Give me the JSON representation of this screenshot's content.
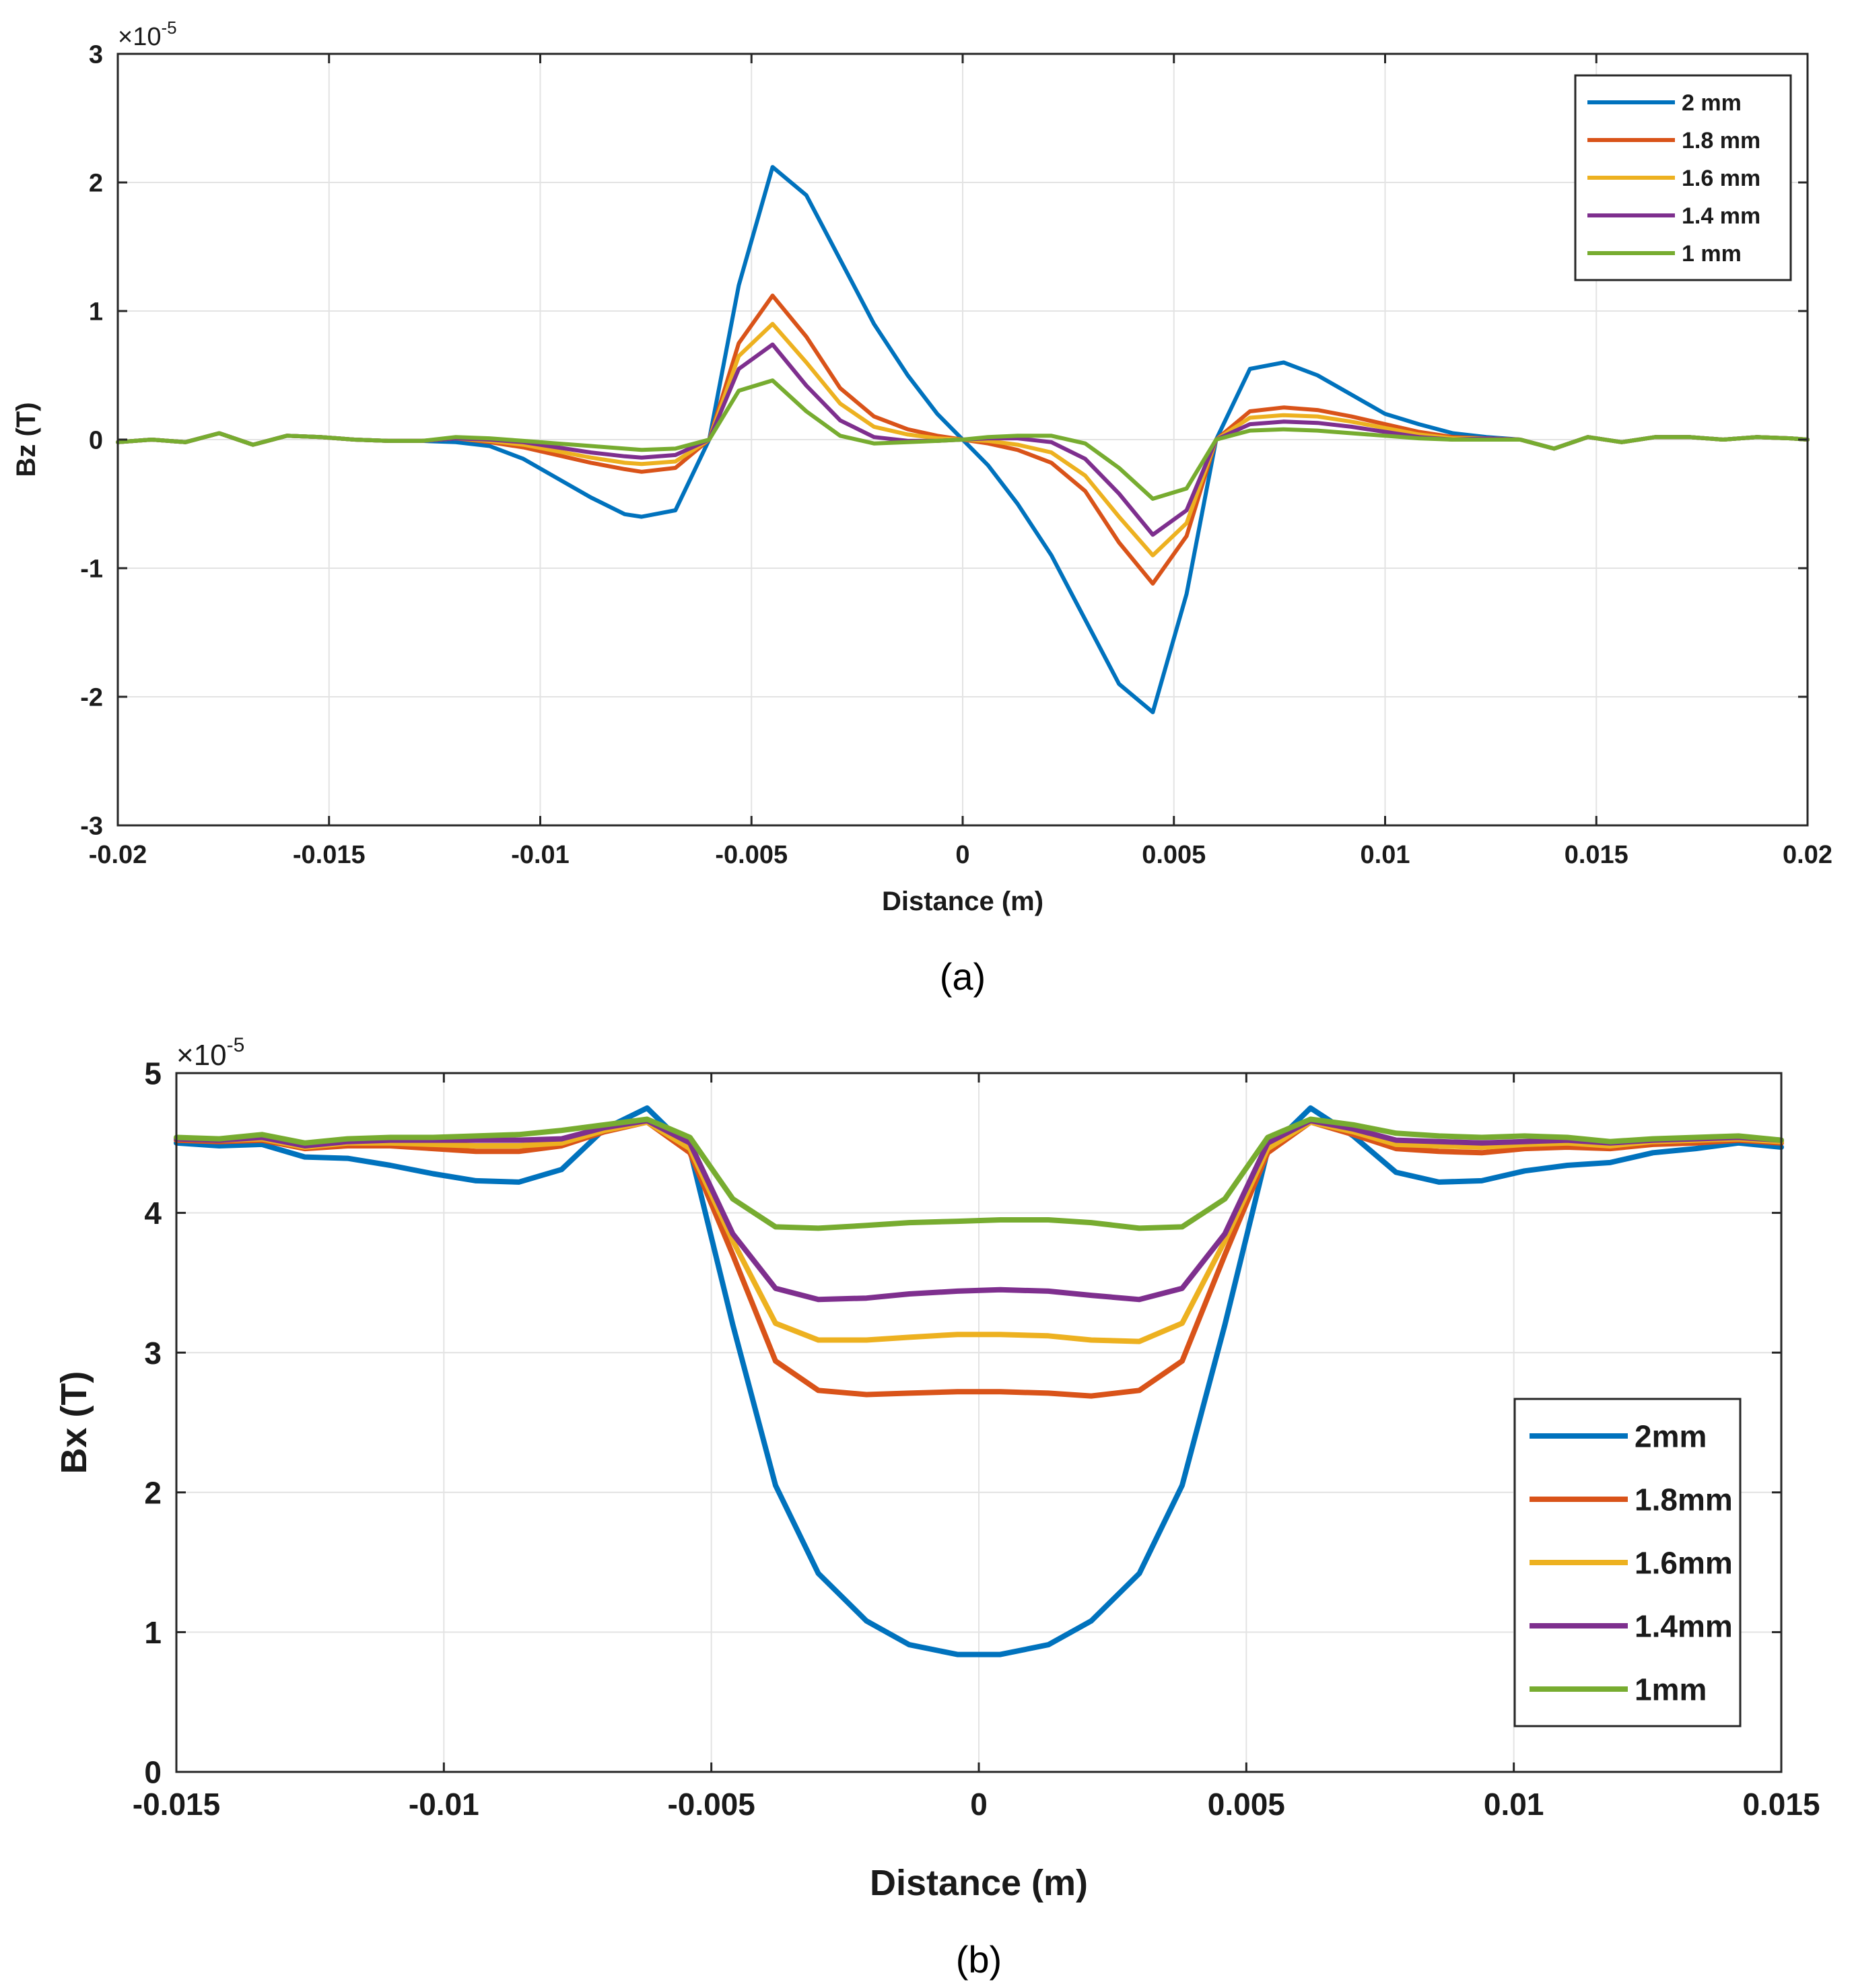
{
  "chart_data": [
    {
      "type": "line",
      "panel_label": "(a)",
      "exponent_label": "×10",
      "exponent_power": "-5",
      "title": "",
      "xlabel": "Distance (m)",
      "ylabel": "Bz (T)",
      "xlim": [
        -0.02,
        0.02
      ],
      "ylim": [
        -3,
        3
      ],
      "xticks": [
        -0.02,
        -0.015,
        -0.01,
        -0.005,
        0,
        0.005,
        0.01,
        0.015,
        0.02
      ],
      "xtick_labels": [
        "-0.02",
        "-0.015",
        "-0.01",
        "-0.005",
        "0",
        "0.005",
        "0.01",
        "0.015",
        "0.02"
      ],
      "yticks": [
        -3,
        -2,
        -1,
        0,
        1,
        2,
        3
      ],
      "ytick_labels": [
        "-3",
        "-2",
        "-1",
        "0",
        "1",
        "2",
        "3"
      ],
      "grid": true,
      "legend_position": "top-right",
      "x": [
        -0.02,
        -0.0192,
        -0.0184,
        -0.0176,
        -0.0168,
        -0.016,
        -0.0152,
        -0.0144,
        -0.0136,
        -0.0128,
        -0.012,
        -0.0112,
        -0.0104,
        -0.0096,
        -0.0088,
        -0.008,
        -0.0076,
        -0.0068,
        -0.006,
        -0.0053,
        -0.0045,
        -0.0037,
        -0.0029,
        -0.0021,
        -0.0013,
        -0.0006,
        0,
        0.0006,
        0.0013,
        0.0021,
        0.0029,
        0.0037,
        0.0045,
        0.0053,
        0.006,
        0.0068,
        0.0076,
        0.0084,
        0.0092,
        0.01,
        0.0108,
        0.0116,
        0.0124,
        0.0132,
        0.014,
        0.0148,
        0.0156,
        0.0164,
        0.0172,
        0.018,
        0.0188,
        0.0196,
        0.02
      ],
      "series": [
        {
          "name": "2 mm",
          "color": "#0072BD",
          "values": [
            -0.02,
            0,
            -0.02,
            0.05,
            -0.04,
            0.03,
            0.02,
            0,
            -0.01,
            -0.01,
            -0.02,
            -0.05,
            -0.15,
            -0.3,
            -0.45,
            -0.58,
            -0.6,
            -0.55,
            0,
            1.2,
            2.12,
            1.9,
            1.4,
            0.9,
            0.5,
            0.2,
            0,
            -0.2,
            -0.5,
            -0.9,
            -1.4,
            -1.9,
            -2.12,
            -1.2,
            0,
            0.55,
            0.6,
            0.5,
            0.35,
            0.2,
            0.12,
            0.05,
            0.02,
            0,
            -0.07,
            0.02,
            -0.02,
            0.02,
            0.02,
            0,
            0.02,
            0.01,
            0
          ]
        },
        {
          "name": "1.8 mm",
          "color": "#D95319",
          "values": [
            -0.02,
            0,
            -0.02,
            0.05,
            -0.04,
            0.03,
            0.02,
            0,
            -0.01,
            -0.01,
            0.01,
            -0.02,
            -0.06,
            -0.12,
            -0.18,
            -0.23,
            -0.25,
            -0.22,
            0,
            0.75,
            1.12,
            0.8,
            0.4,
            0.18,
            0.08,
            0.03,
            0,
            -0.03,
            -0.08,
            -0.18,
            -0.4,
            -0.8,
            -1.12,
            -0.75,
            0,
            0.22,
            0.25,
            0.23,
            0.18,
            0.12,
            0.06,
            0.02,
            0.01,
            0,
            -0.07,
            0.02,
            -0.02,
            0.02,
            0.02,
            0,
            0.02,
            0.01,
            0
          ]
        },
        {
          "name": "1.6 mm",
          "color": "#EDB120",
          "values": [
            -0.02,
            0,
            -0.02,
            0.05,
            -0.04,
            0.03,
            0.02,
            0,
            -0.01,
            -0.01,
            0.01,
            -0.01,
            -0.04,
            -0.09,
            -0.14,
            -0.18,
            -0.19,
            -0.17,
            0,
            0.65,
            0.9,
            0.6,
            0.28,
            0.1,
            0.04,
            0.01,
            0,
            -0.01,
            -0.04,
            -0.1,
            -0.28,
            -0.6,
            -0.9,
            -0.65,
            0,
            0.17,
            0.19,
            0.18,
            0.14,
            0.09,
            0.04,
            0.01,
            0.01,
            0,
            -0.07,
            0.02,
            -0.02,
            0.02,
            0.02,
            0,
            0.02,
            0.01,
            0
          ]
        },
        {
          "name": "1.4 mm",
          "color": "#7E2F8E",
          "values": [
            -0.02,
            0,
            -0.02,
            0.05,
            -0.04,
            0.03,
            0.02,
            0,
            -0.01,
            -0.01,
            0.01,
            0,
            -0.02,
            -0.06,
            -0.1,
            -0.13,
            -0.14,
            -0.12,
            0,
            0.55,
            0.74,
            0.42,
            0.15,
            0.02,
            -0.01,
            -0.01,
            0,
            0.01,
            0.01,
            -0.02,
            -0.15,
            -0.42,
            -0.74,
            -0.55,
            0,
            0.12,
            0.14,
            0.13,
            0.1,
            0.06,
            0.02,
            0,
            0.01,
            0,
            -0.07,
            0.02,
            -0.02,
            0.02,
            0.02,
            0,
            0.02,
            0.01,
            0
          ]
        },
        {
          "name": "1 mm",
          "color": "#77AC30",
          "values": [
            -0.02,
            0,
            -0.02,
            0.05,
            -0.04,
            0.03,
            0.02,
            0,
            -0.01,
            -0.01,
            0.02,
            0.01,
            -0.01,
            -0.03,
            -0.05,
            -0.07,
            -0.08,
            -0.07,
            0,
            0.38,
            0.46,
            0.22,
            0.03,
            -0.03,
            -0.02,
            -0.01,
            0,
            0.02,
            0.03,
            0.03,
            -0.03,
            -0.22,
            -0.46,
            -0.38,
            0,
            0.07,
            0.08,
            0.07,
            0.05,
            0.03,
            0.01,
            0,
            0,
            0,
            -0.07,
            0.02,
            -0.02,
            0.02,
            0.02,
            0,
            0.02,
            0.01,
            0
          ]
        }
      ]
    },
    {
      "type": "line",
      "panel_label": "(b)",
      "exponent_label": "×10",
      "exponent_power": "-5",
      "title": "",
      "xlabel": "Distance (m)",
      "ylabel": "Bx (T)",
      "xlim": [
        -0.015,
        0.015
      ],
      "ylim": [
        0,
        5
      ],
      "xticks": [
        -0.015,
        -0.01,
        -0.005,
        0,
        0.005,
        0.01,
        0.015
      ],
      "xtick_labels": [
        "-0.015",
        "-0.01",
        "-0.005",
        "0",
        "0.005",
        "0.01",
        "0.015"
      ],
      "yticks": [
        0,
        1,
        2,
        3,
        4,
        5
      ],
      "ytick_labels": [
        "0",
        "1",
        "2",
        "3",
        "4",
        "5"
      ],
      "grid": true,
      "legend_position": "right-center",
      "x": [
        -0.015,
        -0.0142,
        -0.0134,
        -0.0126,
        -0.0118,
        -0.011,
        -0.0102,
        -0.0094,
        -0.0086,
        -0.0078,
        -0.007,
        -0.0062,
        -0.0054,
        -0.0046,
        -0.0038,
        -0.003,
        -0.0021,
        -0.0013,
        -0.0004,
        0.0004,
        0.0013,
        0.0021,
        0.003,
        0.0038,
        0.0046,
        0.0054,
        0.0062,
        0.007,
        0.0078,
        0.0086,
        0.0094,
        0.0102,
        0.011,
        0.0118,
        0.0126,
        0.0134,
        0.0142,
        0.015
      ],
      "series": [
        {
          "name": "2mm",
          "color": "#0072BD",
          "values": [
            4.5,
            4.48,
            4.49,
            4.4,
            4.39,
            4.34,
            4.28,
            4.23,
            4.22,
            4.31,
            4.6,
            4.75,
            4.45,
            3.2,
            2.05,
            1.42,
            1.08,
            0.91,
            0.84,
            0.84,
            0.91,
            1.08,
            1.42,
            2.05,
            3.2,
            4.45,
            4.75,
            4.55,
            4.29,
            4.22,
            4.23,
            4.3,
            4.34,
            4.36,
            4.43,
            4.46,
            4.5,
            4.47
          ]
        },
        {
          "name": "1.8mm",
          "color": "#D95319",
          "values": [
            4.52,
            4.51,
            4.52,
            4.46,
            4.48,
            4.48,
            4.46,
            4.44,
            4.44,
            4.48,
            4.58,
            4.65,
            4.43,
            3.7,
            2.94,
            2.73,
            2.7,
            2.71,
            2.72,
            2.72,
            2.71,
            2.69,
            2.73,
            2.94,
            3.7,
            4.43,
            4.65,
            4.56,
            4.46,
            4.44,
            4.43,
            4.46,
            4.47,
            4.46,
            4.49,
            4.5,
            4.52,
            4.5
          ]
        },
        {
          "name": "1.6mm",
          "color": "#EDB120",
          "values": [
            4.53,
            4.52,
            4.53,
            4.47,
            4.5,
            4.5,
            4.49,
            4.48,
            4.48,
            4.5,
            4.59,
            4.65,
            4.46,
            3.8,
            3.21,
            3.09,
            3.09,
            3.11,
            3.13,
            3.13,
            3.12,
            3.09,
            3.08,
            3.21,
            3.8,
            4.46,
            4.65,
            4.58,
            4.49,
            4.48,
            4.47,
            4.49,
            4.5,
            4.48,
            4.51,
            4.52,
            4.53,
            4.51
          ]
        },
        {
          "name": "1.4mm",
          "color": "#7E2F8E",
          "values": [
            4.53,
            4.52,
            4.54,
            4.48,
            4.51,
            4.52,
            4.52,
            4.52,
            4.52,
            4.53,
            4.61,
            4.66,
            4.5,
            3.85,
            3.46,
            3.38,
            3.39,
            3.42,
            3.44,
            3.45,
            3.44,
            3.41,
            3.38,
            3.46,
            3.85,
            4.5,
            4.66,
            4.6,
            4.52,
            4.51,
            4.5,
            4.51,
            4.52,
            4.5,
            4.52,
            4.53,
            4.54,
            4.52
          ]
        },
        {
          "name": "1mm",
          "color": "#77AC30",
          "values": [
            4.54,
            4.53,
            4.56,
            4.5,
            4.53,
            4.54,
            4.54,
            4.55,
            4.56,
            4.59,
            4.63,
            4.67,
            4.54,
            4.1,
            3.9,
            3.89,
            3.91,
            3.93,
            3.94,
            3.95,
            3.95,
            3.93,
            3.89,
            3.9,
            4.1,
            4.54,
            4.67,
            4.63,
            4.57,
            4.55,
            4.54,
            4.55,
            4.54,
            4.51,
            4.53,
            4.54,
            4.55,
            4.52
          ]
        }
      ]
    }
  ]
}
